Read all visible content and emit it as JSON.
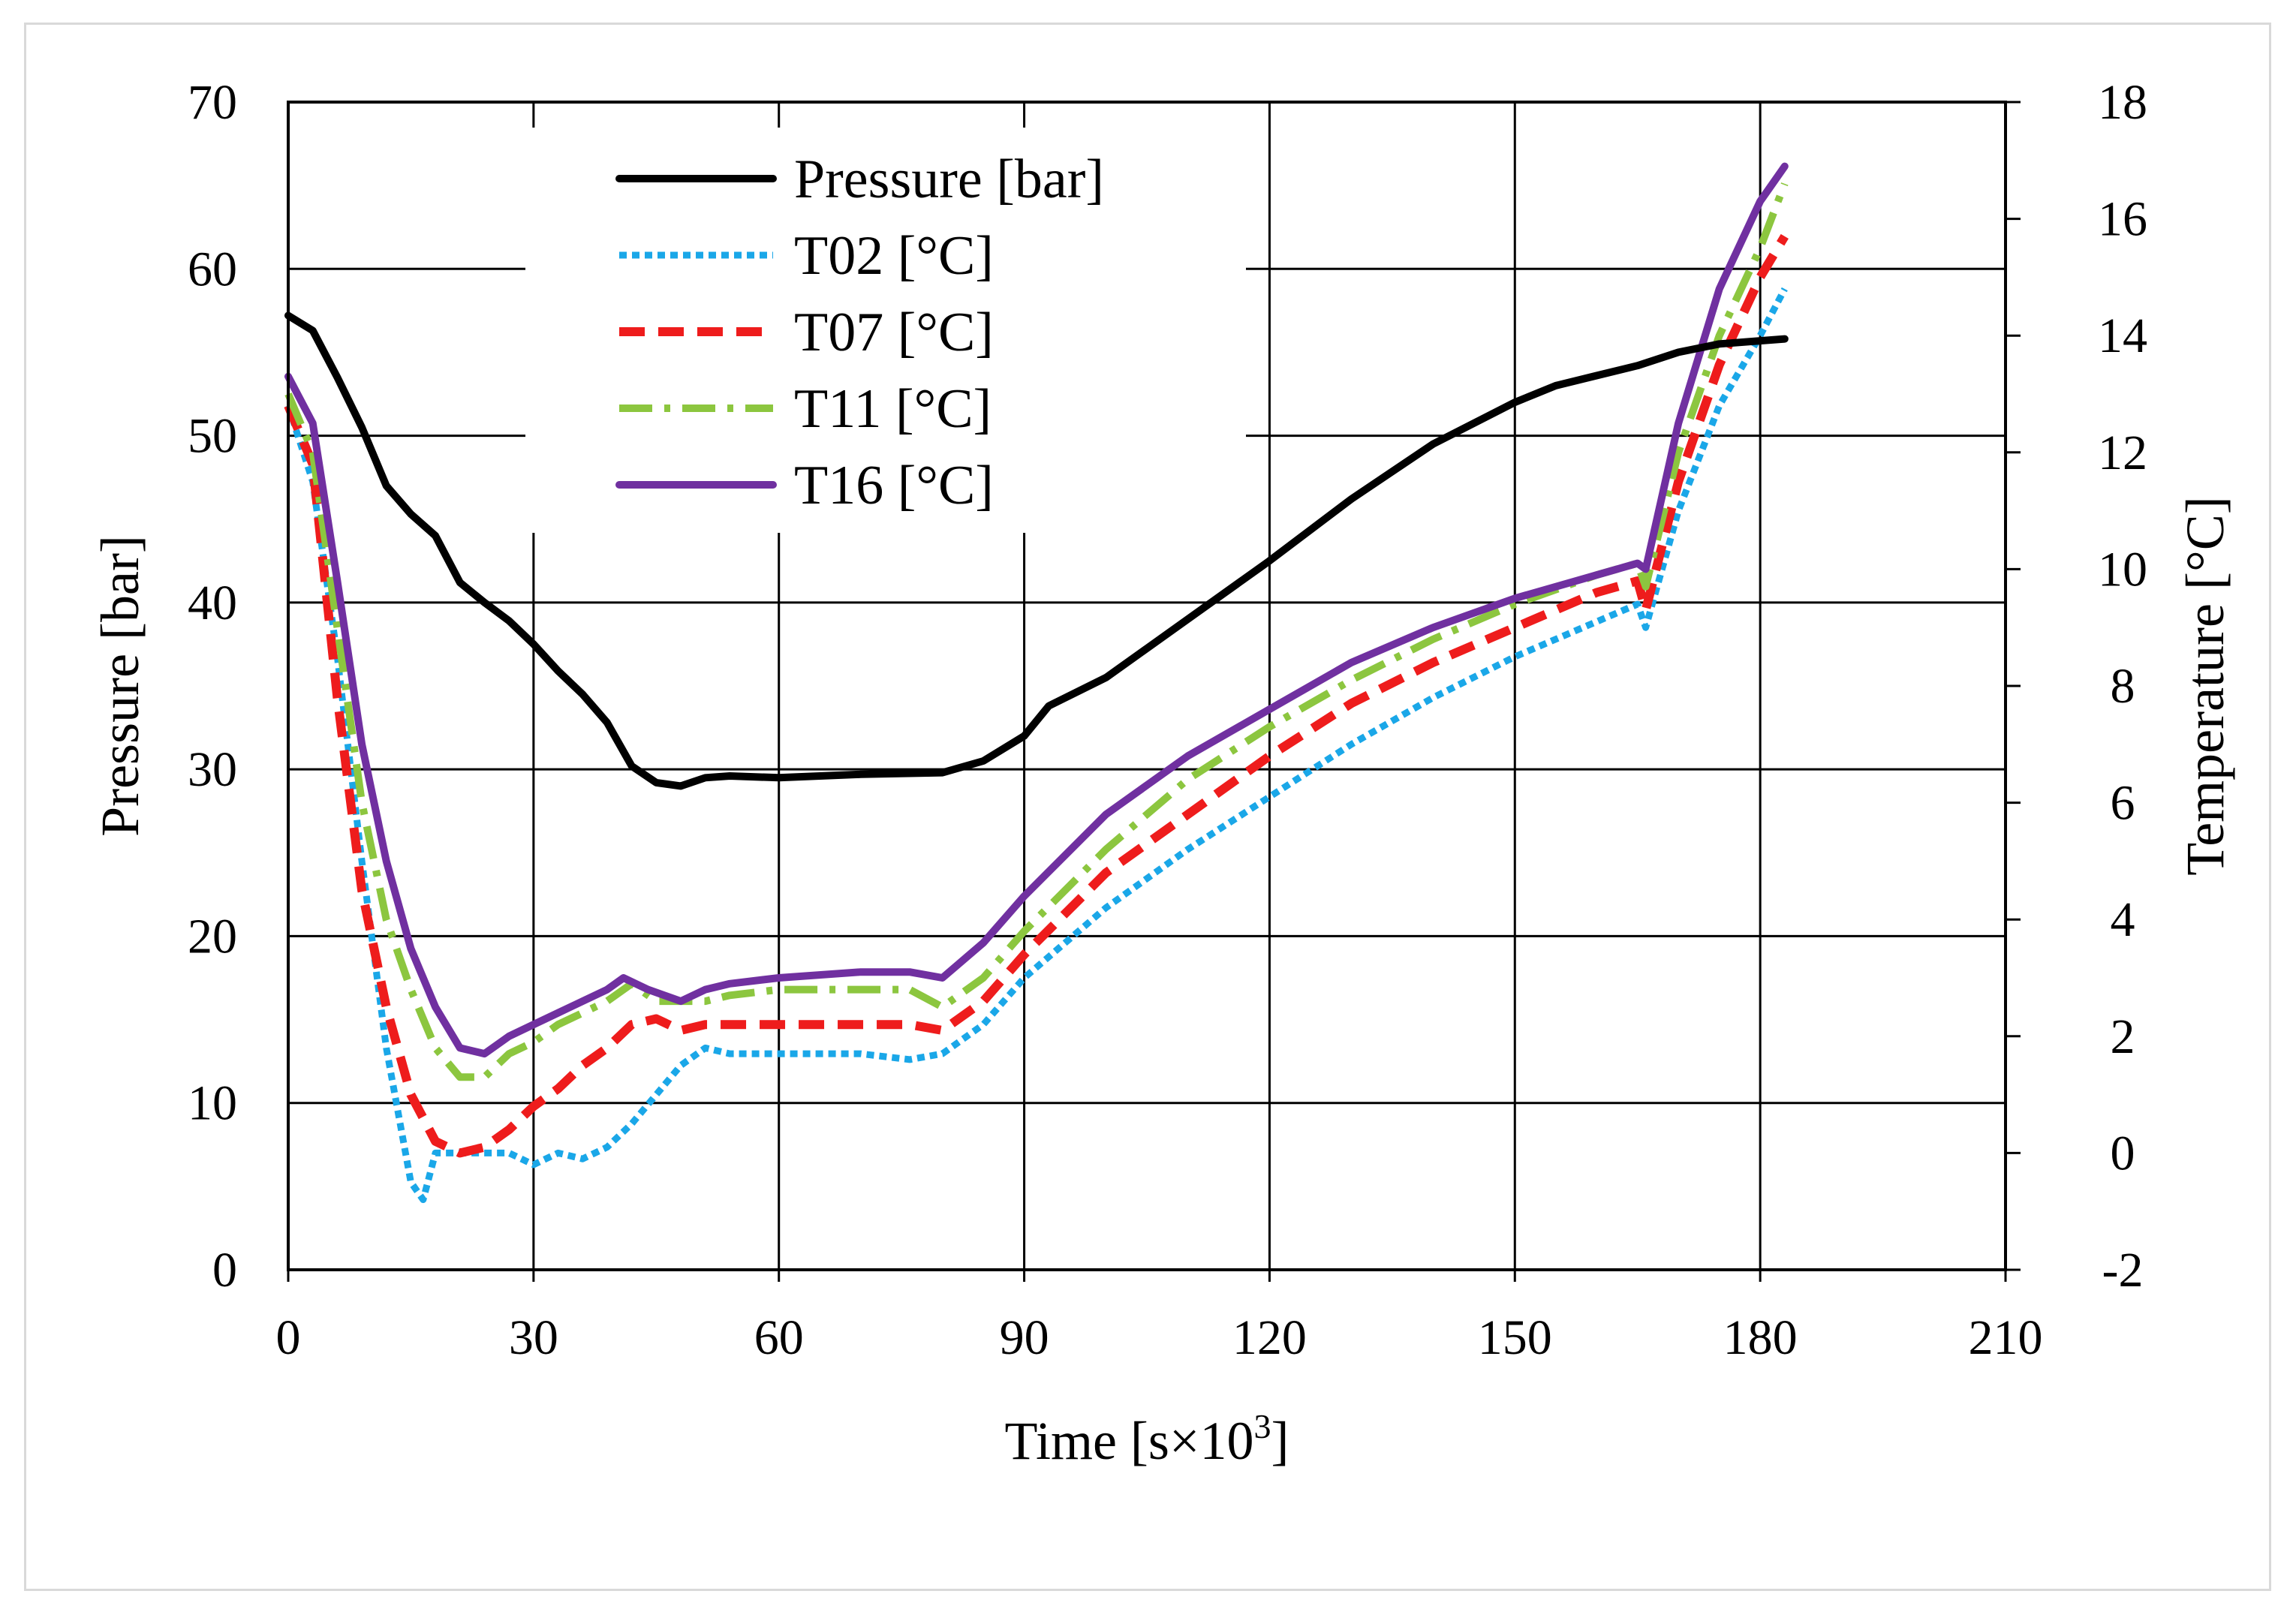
{
  "chart_data": {
    "type": "line",
    "title": "",
    "xlabel": "Time [s×10³]",
    "xlabel_main": "Time [s×10",
    "xlabel_sup": "3",
    "xlabel_end": "]",
    "ylabel": "Pressure [bar]",
    "y2label": "Temperature [°C]",
    "xlim": [
      0,
      210
    ],
    "ylim": [
      0,
      70
    ],
    "y2lim": [
      -2,
      18
    ],
    "xticks": [
      "0",
      "30",
      "60",
      "90",
      "120",
      "150",
      "180",
      "210"
    ],
    "yticks": [
      "0",
      "10",
      "20",
      "30",
      "40",
      "50",
      "60",
      "70"
    ],
    "y2ticks": [
      "-2",
      "0",
      "2",
      "4",
      "6",
      "8",
      "10",
      "12",
      "14",
      "16",
      "18"
    ],
    "grid": true,
    "legend_position": "top-left",
    "series": [
      {
        "name": "Pressure [bar]",
        "axis": "left",
        "color": "#000000",
        "style": "solid",
        "points": [
          [
            0,
            57.2
          ],
          [
            3,
            56.3
          ],
          [
            6,
            53.5
          ],
          [
            9,
            50.5
          ],
          [
            12,
            47
          ],
          [
            15,
            45.3
          ],
          [
            18,
            44
          ],
          [
            21,
            41.2
          ],
          [
            24,
            40
          ],
          [
            27,
            38.9
          ],
          [
            30,
            37.5
          ],
          [
            33,
            35.9
          ],
          [
            36,
            34.5
          ],
          [
            39,
            32.8
          ],
          [
            42,
            30.2
          ],
          [
            45,
            29.2
          ],
          [
            48,
            29
          ],
          [
            51,
            29.5
          ],
          [
            54,
            29.6
          ],
          [
            60,
            29.5
          ],
          [
            70,
            29.7
          ],
          [
            80,
            29.8
          ],
          [
            85,
            30.5
          ],
          [
            90,
            32
          ],
          [
            93,
            33.8
          ],
          [
            100,
            35.5
          ],
          [
            110,
            39
          ],
          [
            120,
            42.5
          ],
          [
            130,
            46.2
          ],
          [
            140,
            49.5
          ],
          [
            150,
            52
          ],
          [
            155,
            53
          ],
          [
            160,
            53.6
          ],
          [
            165,
            54.2
          ],
          [
            170,
            55
          ],
          [
            175,
            55.5
          ],
          [
            183,
            55.8
          ]
        ]
      },
      {
        "name": "T02 [°C]",
        "axis": "right",
        "color": "#1aa7e8",
        "style": "dotted",
        "points": [
          [
            0,
            12.8
          ],
          [
            3,
            11.5
          ],
          [
            6,
            8.5
          ],
          [
            9,
            5
          ],
          [
            12,
            1.8
          ],
          [
            15,
            -0.5
          ],
          [
            16.5,
            -0.8
          ],
          [
            18,
            0
          ],
          [
            21,
            0
          ],
          [
            24,
            0
          ],
          [
            27,
            0
          ],
          [
            30,
            -0.2
          ],
          [
            33,
            0
          ],
          [
            36,
            -0.1
          ],
          [
            39,
            0.1
          ],
          [
            42,
            0.5
          ],
          [
            45,
            1
          ],
          [
            48,
            1.5
          ],
          [
            51,
            1.8
          ],
          [
            54,
            1.7
          ],
          [
            60,
            1.7
          ],
          [
            70,
            1.7
          ],
          [
            76,
            1.6
          ],
          [
            80,
            1.7
          ],
          [
            85,
            2.2
          ],
          [
            90,
            3
          ],
          [
            100,
            4.2
          ],
          [
            110,
            5.2
          ],
          [
            120,
            6.1
          ],
          [
            130,
            7
          ],
          [
            140,
            7.8
          ],
          [
            150,
            8.5
          ],
          [
            160,
            9.1
          ],
          [
            165,
            9.4
          ],
          [
            166,
            9
          ],
          [
            170,
            11
          ],
          [
            175,
            12.8
          ],
          [
            180,
            14
          ],
          [
            183,
            14.8
          ]
        ]
      },
      {
        "name": "T07 [°C]",
        "axis": "right",
        "color": "#ee1c1c",
        "style": "dashed",
        "points": [
          [
            0,
            12.8
          ],
          [
            3,
            11.8
          ],
          [
            6,
            7.8
          ],
          [
            9,
            4.5
          ],
          [
            12,
            2.5
          ],
          [
            15,
            1
          ],
          [
            18,
            0.2
          ],
          [
            21,
            0
          ],
          [
            24,
            0.1
          ],
          [
            27,
            0.4
          ],
          [
            30,
            0.8
          ],
          [
            33,
            1.1
          ],
          [
            36,
            1.5
          ],
          [
            39,
            1.8
          ],
          [
            42,
            2.2
          ],
          [
            45,
            2.3
          ],
          [
            48,
            2.1
          ],
          [
            51,
            2.2
          ],
          [
            54,
            2.2
          ],
          [
            60,
            2.2
          ],
          [
            70,
            2.2
          ],
          [
            76,
            2.2
          ],
          [
            80,
            2.1
          ],
          [
            85,
            2.6
          ],
          [
            90,
            3.4
          ],
          [
            100,
            4.8
          ],
          [
            110,
            5.8
          ],
          [
            120,
            6.8
          ],
          [
            130,
            7.7
          ],
          [
            140,
            8.4
          ],
          [
            150,
            9
          ],
          [
            160,
            9.6
          ],
          [
            165,
            9.8
          ],
          [
            166,
            9.3
          ],
          [
            170,
            11.5
          ],
          [
            175,
            13.5
          ],
          [
            180,
            15
          ],
          [
            183,
            15.7
          ]
        ]
      },
      {
        "name": "T11 [°C]",
        "axis": "right",
        "color": "#8cc63f",
        "style": "dashdot",
        "points": [
          [
            0,
            13
          ],
          [
            3,
            12
          ],
          [
            6,
            9
          ],
          [
            9,
            6
          ],
          [
            12,
            4
          ],
          [
            15,
            2.8
          ],
          [
            18,
            1.8
          ],
          [
            21,
            1.3
          ],
          [
            24,
            1.3
          ],
          [
            27,
            1.7
          ],
          [
            30,
            1.9
          ],
          [
            33,
            2.2
          ],
          [
            36,
            2.4
          ],
          [
            39,
            2.6
          ],
          [
            42,
            2.9
          ],
          [
            45,
            2.6
          ],
          [
            48,
            2.6
          ],
          [
            51,
            2.6
          ],
          [
            54,
            2.7
          ],
          [
            60,
            2.8
          ],
          [
            70,
            2.8
          ],
          [
            76,
            2.8
          ],
          [
            80,
            2.5
          ],
          [
            85,
            3
          ],
          [
            90,
            3.8
          ],
          [
            100,
            5.2
          ],
          [
            110,
            6.4
          ],
          [
            120,
            7.3
          ],
          [
            130,
            8.1
          ],
          [
            140,
            8.8
          ],
          [
            150,
            9.4
          ],
          [
            160,
            9.9
          ],
          [
            165,
            10.1
          ],
          [
            166,
            9.7
          ],
          [
            170,
            12
          ],
          [
            175,
            14
          ],
          [
            180,
            15.5
          ],
          [
            183,
            16.6
          ]
        ]
      },
      {
        "name": "T16 [°C]",
        "axis": "right",
        "color": "#7030a0",
        "style": "solid",
        "points": [
          [
            0,
            13.3
          ],
          [
            3,
            12.5
          ],
          [
            6,
            9.8
          ],
          [
            9,
            7
          ],
          [
            12,
            5
          ],
          [
            15,
            3.5
          ],
          [
            18,
            2.5
          ],
          [
            21,
            1.8
          ],
          [
            24,
            1.7
          ],
          [
            27,
            2
          ],
          [
            30,
            2.2
          ],
          [
            33,
            2.4
          ],
          [
            36,
            2.6
          ],
          [
            39,
            2.8
          ],
          [
            41,
            3
          ],
          [
            44,
            2.8
          ],
          [
            48,
            2.6
          ],
          [
            51,
            2.8
          ],
          [
            54,
            2.9
          ],
          [
            60,
            3
          ],
          [
            70,
            3.1
          ],
          [
            76,
            3.1
          ],
          [
            80,
            3
          ],
          [
            85,
            3.6
          ],
          [
            90,
            4.4
          ],
          [
            100,
            5.8
          ],
          [
            110,
            6.8
          ],
          [
            120,
            7.6
          ],
          [
            130,
            8.4
          ],
          [
            140,
            9
          ],
          [
            150,
            9.5
          ],
          [
            160,
            9.9
          ],
          [
            165,
            10.1
          ],
          [
            166,
            10
          ],
          [
            170,
            12.5
          ],
          [
            175,
            14.8
          ],
          [
            180,
            16.3
          ],
          [
            183,
            16.9
          ]
        ]
      }
    ]
  }
}
